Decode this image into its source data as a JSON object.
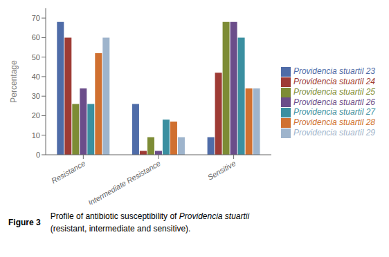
{
  "chart_data": {
    "type": "bar",
    "categories": [
      "Resistance",
      "Intermediate Resistance",
      "Sensitive"
    ],
    "series": [
      {
        "name": "Providencia stuartil 23",
        "color": "#4F6CA8",
        "values": [
          68,
          26,
          9
        ]
      },
      {
        "name": "Providencia stuartil 24",
        "color": "#9E3B35",
        "values": [
          60,
          2,
          42
        ]
      },
      {
        "name": "Providencia stuartil 25",
        "color": "#7D8C35",
        "values": [
          26,
          9,
          68
        ]
      },
      {
        "name": "Providencia stuartil 26",
        "color": "#6B4D8A",
        "values": [
          34,
          2,
          68
        ]
      },
      {
        "name": "Providencia stuartil 27",
        "color": "#3A8FA0",
        "values": [
          26,
          18,
          60
        ]
      },
      {
        "name": "Providencia stuartil 28",
        "color": "#D07030",
        "values": [
          52,
          17,
          34
        ]
      },
      {
        "name": "Providencia stuartil 29",
        "color": "#9EB4CC",
        "values": [
          60,
          9,
          34
        ]
      }
    ],
    "ylabel": "Percentage",
    "ylim": [
      0,
      75
    ],
    "yticks": [
      0,
      10,
      20,
      30,
      40,
      50,
      60,
      70
    ],
    "grid": false,
    "legend": "right",
    "annotations": [
      "Figure 3",
      "Profile of antibiotic susceptibility of",
      "Providencia stuartii",
      "(resistant, intermediate and sensitive)."
    ]
  }
}
